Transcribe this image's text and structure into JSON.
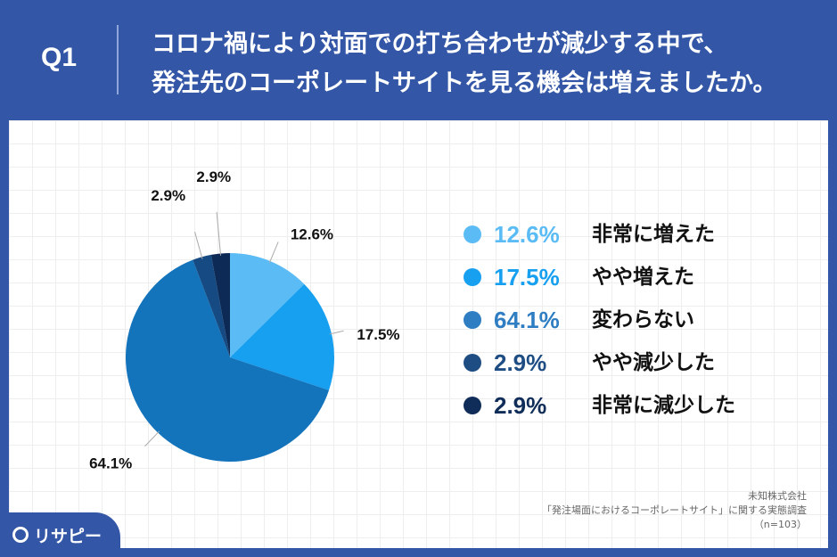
{
  "header": {
    "question_label": "Q1",
    "title_line1": "コロナ禍により対面での打ち合わせが減少する中で、",
    "title_line2": "発注先のコーポレートサイトを見る機会は増えましたか。"
  },
  "chart_data": {
    "type": "pie",
    "slices": [
      {
        "label": "非常に増えた",
        "value": 12.6,
        "display": "12.6%",
        "color": "#5bbcf5"
      },
      {
        "label": "やや増えた",
        "value": 17.5,
        "display": "17.5%",
        "color": "#18a0f0"
      },
      {
        "label": "変わらない",
        "value": 64.1,
        "display": "64.1%",
        "color": "#1373bb"
      },
      {
        "label": "やや減少した",
        "value": 2.9,
        "display": "2.9%",
        "color": "#164a82"
      },
      {
        "label": "非常に減少した",
        "value": 2.9,
        "display": "2.9%",
        "color": "#0c2a55"
      }
    ],
    "start": "12 o'clock",
    "direction": "clockwise",
    "legend_placement": "right"
  },
  "legend_colors": [
    "#5bbcf5",
    "#18a0f0",
    "#2f7dc2",
    "#1e4d84",
    "#0f2d58"
  ],
  "footer": {
    "company": "未知株式会社",
    "survey": "「発注場面におけるコーポレートサイト」に関する実態調査",
    "sample": "（n=103）"
  },
  "logo": {
    "text": "リサピー",
    "icon": "magnifier-icon"
  }
}
